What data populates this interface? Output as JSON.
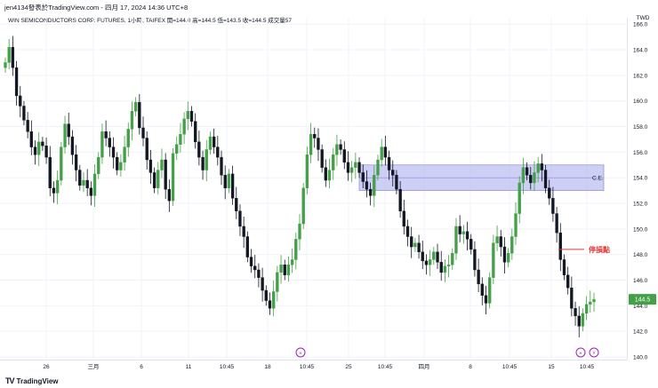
{
  "header": {
    "caption": "jen4134發表於TradingView.com - 四月 17, 2024 14:36 UTC+8"
  },
  "symbol_line": "WIN SEMICONDUCTORS CORP. FUTURES, 1小時, TAIFEX  開=144.0  高=144.5  低=143.5  收=144.5  成交量57",
  "timezone": "TWD",
  "footer": {
    "brand": "TradingView"
  },
  "price_badge": {
    "value": "144.5",
    "color": "#43a047"
  },
  "annotations": {
    "zone_label": "C.E.",
    "stop_label": "停損點",
    "zone_color": "#b4b6ee",
    "stop_color": "#e53935"
  },
  "colors": {
    "up": "#43a047",
    "down": "#131722",
    "grid": "#f0f3fa"
  },
  "chart_data": {
    "type": "candlestick",
    "y_ticks": [
      "140.0",
      "142.0",
      "144.0",
      "146.0",
      "148.0",
      "150.0",
      "152.0",
      "154.0",
      "156.0",
      "158.0",
      "160.0",
      "162.0",
      "164.0",
      "166.0"
    ],
    "ylim": [
      140,
      166.5
    ],
    "x_ticks": [
      "26",
      "三月",
      "6",
      "11",
      "10:45",
      "18",
      "10:45",
      "25",
      "10:45",
      "四月",
      "8",
      "10:45",
      "15",
      "10:45"
    ],
    "zone": {
      "from": 153,
      "to": 155
    },
    "stop_level": 148.4,
    "close": [
      163,
      164.2,
      162.6,
      160.4,
      159.6,
      158.5,
      157.6,
      156.4,
      155.8,
      156.8,
      156.5,
      155.6,
      153.2,
      152.8,
      153.8,
      156.4,
      158.2,
      157.2,
      155.8,
      154.6,
      153.4,
      153.8,
      153.2,
      152.6,
      154.3,
      155.6,
      157.6,
      157.1,
      156.4,
      155.6,
      154.6,
      155.2,
      156.4,
      157.8,
      159.2,
      159.9,
      157.9,
      157.1,
      155.4,
      154.4,
      153.2,
      154.6,
      155.4,
      153.1,
      152.2,
      155.9,
      156.6,
      157.4,
      158.6,
      159.2,
      158.4,
      156.8,
      155.6,
      154.6,
      156.2,
      157.2,
      156.4,
      155.6,
      154.2,
      153.2,
      154.3,
      152.4,
      151.4,
      150.2,
      149.4,
      147.8,
      147.1,
      146.8,
      146.2,
      145.2,
      144.4,
      143.8,
      145.1,
      146.6,
      147.2,
      146.4,
      147.2,
      147.6,
      149.2,
      150.4,
      153.2,
      155.8,
      157.4,
      157.1,
      156.2,
      154.8,
      153.8,
      154.6,
      155.8,
      156.6,
      156.2,
      155.2,
      154.4,
      154.8,
      155.2,
      154.4,
      153.7,
      153.1,
      152.6,
      154.2,
      155.4,
      156.4,
      155.6,
      154.6,
      154.2,
      153.1,
      151.4,
      150.2,
      149.4,
      148.6,
      148.9,
      148.2,
      147.5,
      147.2,
      147.6,
      148.2,
      147.4,
      146.6,
      147.1,
      147.2,
      148.1,
      150.2,
      149.6,
      149.8,
      149.2,
      148.4,
      146.8,
      145.7,
      144.8,
      144.2,
      146.2,
      148.9,
      149.4,
      148.6,
      147.4,
      148.1,
      149.4,
      151.2,
      153.6,
      154.8,
      154.2,
      153.6,
      154.4,
      155.1,
      154.6,
      153.2,
      152.4,
      151.2,
      149.7,
      147.6,
      146.4,
      145.4,
      143.8,
      143.2,
      142.4,
      143.4,
      144.1,
      144.3,
      144.5
    ]
  }
}
